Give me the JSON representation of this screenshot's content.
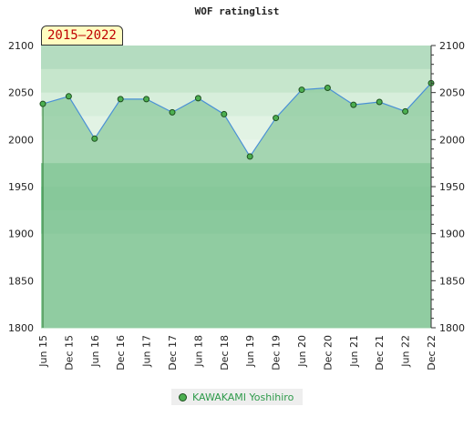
{
  "title": "WOF ratinglist",
  "badge": "2015–2022",
  "colors": {
    "band_fills": [
      "#b4dcc0",
      "#c6e6cc",
      "#d7eedb",
      "#e2f3e4",
      "#e9f5eb",
      "#89c99b",
      "#79c391",
      "#85c89a",
      "#9bd3aa"
    ],
    "area": "#8cc99e",
    "line": "#4a90d6",
    "marker": "#4caf50",
    "marker_stroke": "#1d4f1f",
    "left_stroke": "#2e7d32"
  },
  "chart_data": {
    "type": "area",
    "title": "WOF ratinglist",
    "x": [
      "Jun 15",
      "Dec 15",
      "Jun 16",
      "Dec 16",
      "Jun 17",
      "Dec 17",
      "Jun 18",
      "Dec 18",
      "Jun 19",
      "Dec 19",
      "Jun 20",
      "Dec 20",
      "Jun 21",
      "Dec 21",
      "Jun 22",
      "Dec 22"
    ],
    "series": [
      {
        "name": "KAWAKAMI Yoshihiro",
        "values": [
          2038,
          2046,
          2001,
          2043,
          2043,
          2029,
          2044,
          2027,
          1982,
          2023,
          2053,
          2055,
          2037,
          2040,
          2030,
          2060
        ]
      }
    ],
    "ylim": [
      1800,
      2100
    ],
    "yticks": [
      1800,
      1850,
      1900,
      1950,
      2000,
      2050,
      2100
    ],
    "yaxis_right": true,
    "legend_position": "bottom-center",
    "grid": false
  }
}
